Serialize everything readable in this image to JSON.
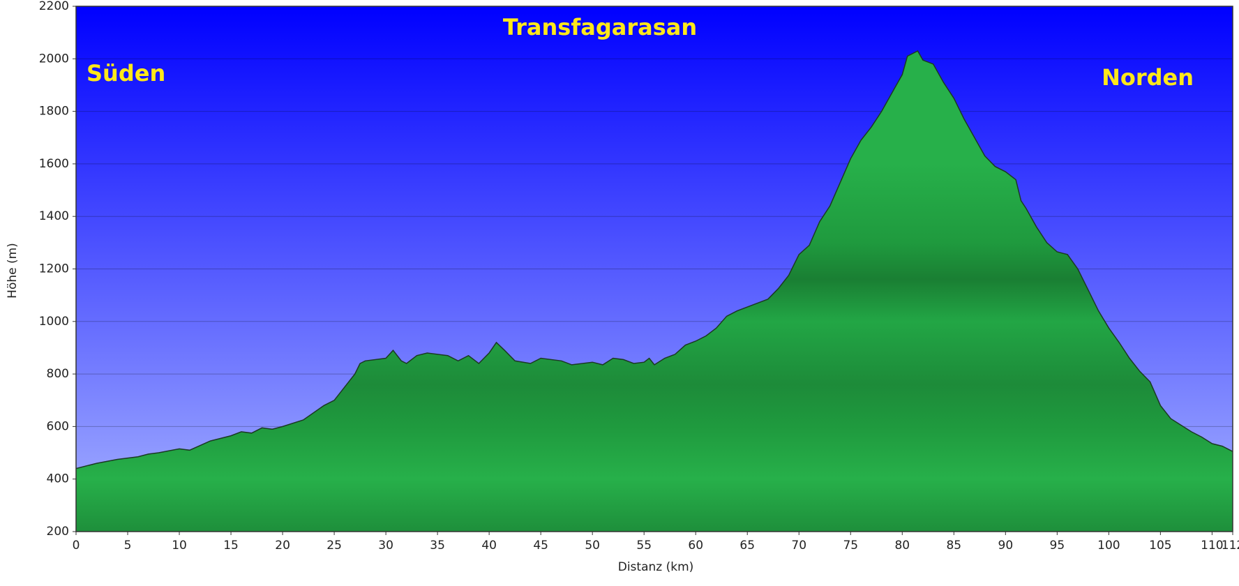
{
  "chart_data": {
    "type": "area",
    "title": "Transfagarasan",
    "annotations": [
      "Süden",
      "Norden"
    ],
    "x_label": "Distanz  (km)",
    "y_label": "Höhe (m)",
    "x": [
      0,
      2,
      4,
      6,
      7,
      8,
      10,
      11,
      13,
      15,
      16,
      17,
      18,
      19,
      20,
      22,
      24,
      25,
      26,
      27,
      27.5,
      28,
      30,
      30.7,
      31.5,
      32,
      33,
      34,
      36,
      37,
      38,
      39,
      40,
      40.7,
      41.5,
      42.5,
      44,
      45,
      47,
      48,
      50,
      51,
      52,
      53,
      54,
      55,
      55.5,
      56,
      57,
      58,
      59,
      60,
      61,
      62,
      63,
      64,
      65,
      66,
      67,
      68,
      69,
      70,
      71,
      72,
      73,
      74,
      75,
      76,
      77,
      78,
      79,
      80,
      80.5,
      81.5,
      82,
      83,
      84,
      85,
      86,
      87,
      88,
      89,
      90,
      91,
      91.5,
      92,
      93,
      94,
      95,
      96,
      97,
      98,
      99,
      100,
      101,
      102,
      103,
      104,
      105,
      106,
      107,
      108,
      109,
      110,
      111,
      112
    ],
    "y": [
      440,
      460,
      475,
      485,
      495,
      500,
      515,
      510,
      545,
      565,
      580,
      575,
      595,
      590,
      600,
      625,
      680,
      700,
      750,
      800,
      840,
      850,
      860,
      890,
      850,
      840,
      870,
      880,
      870,
      850,
      870,
      840,
      880,
      920,
      890,
      850,
      840,
      860,
      850,
      835,
      845,
      835,
      860,
      855,
      840,
      845,
      860,
      835,
      860,
      875,
      910,
      925,
      945,
      975,
      1020,
      1040,
      1055,
      1070,
      1085,
      1125,
      1175,
      1255,
      1290,
      1380,
      1440,
      1530,
      1620,
      1690,
      1740,
      1800,
      1870,
      1940,
      2010,
      2030,
      1995,
      1980,
      1910,
      1850,
      1770,
      1700,
      1630,
      1590,
      1570,
      1540,
      1460,
      1430,
      1360,
      1300,
      1265,
      1255,
      1200,
      1120,
      1040,
      975,
      920,
      860,
      810,
      770,
      680,
      630,
      605,
      580,
      560,
      535,
      525,
      505
    ],
    "color": "#22aa44",
    "xlim": [
      0,
      112
    ],
    "xticks": [
      0,
      5,
      10,
      15,
      20,
      25,
      30,
      35,
      40,
      45,
      50,
      55,
      60,
      65,
      70,
      75,
      80,
      85,
      90,
      95,
      100,
      105,
      110,
      112
    ],
    "ylim": [
      200,
      2200
    ],
    "yticks": [
      200,
      400,
      600,
      800,
      1000,
      1200,
      1400,
      1600,
      1800,
      2000,
      2200
    ],
    "grid": true
  }
}
